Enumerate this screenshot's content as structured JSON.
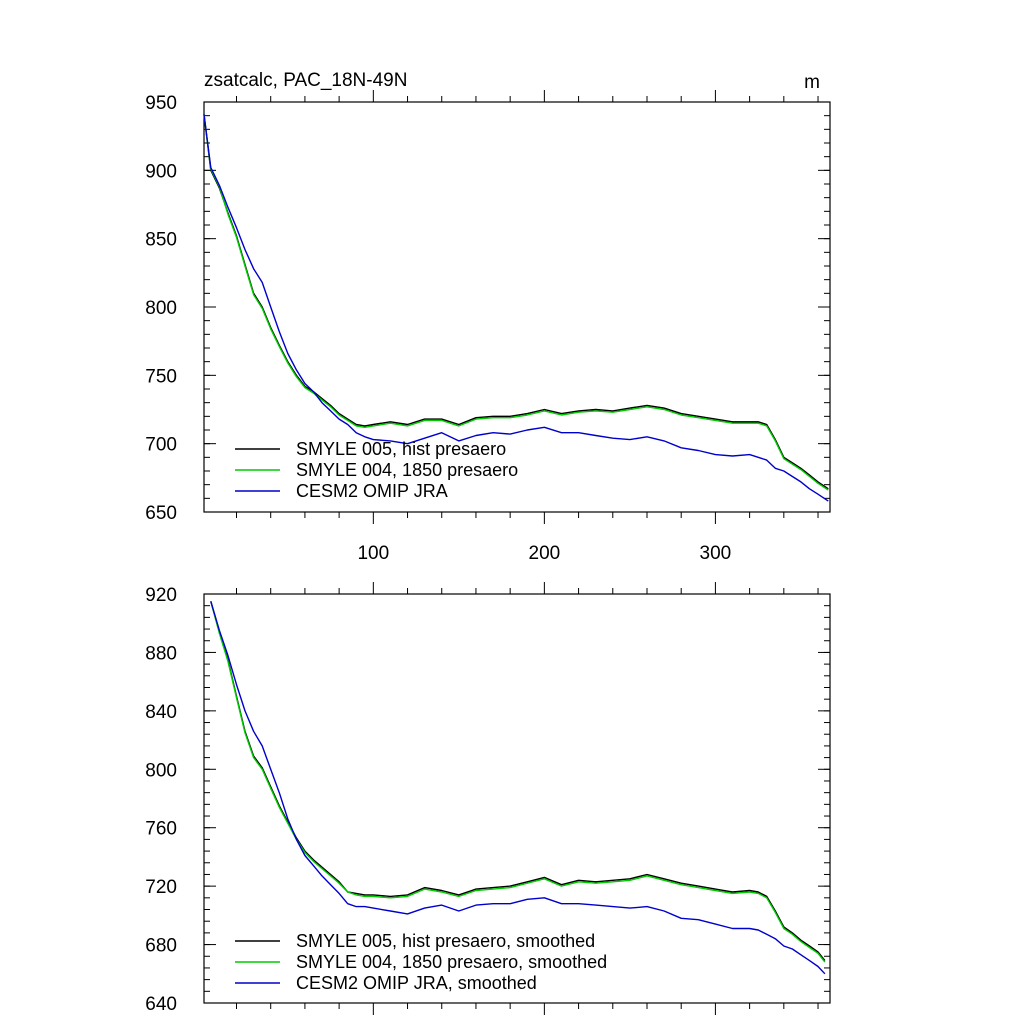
{
  "figure": {
    "title": "zsatcalc, PAC_18N-49N",
    "units": "m"
  },
  "colors": {
    "smyle005": "#000000",
    "smyle004": "#00cc00",
    "omip": "#0000cc",
    "axis": "#000000"
  },
  "chart_data": [
    {
      "type": "line",
      "title": "zsatcalc, PAC_18N-49N",
      "units": "m",
      "xlabel": "",
      "ylabel": "",
      "xlim": [
        1,
        367
      ],
      "ylim": [
        650,
        950
      ],
      "xticks": [
        100,
        200,
        300
      ],
      "xtick_labels": [
        "100",
        "200",
        "300"
      ],
      "yticks": [
        650,
        700,
        750,
        800,
        850,
        900,
        950
      ],
      "ytick_labels": [
        "650",
        "700",
        "750",
        "800",
        "850",
        "900",
        "950"
      ],
      "legend_position": "bottom-left",
      "series": [
        {
          "name": "SMYLE 005, hist presaero",
          "color_key": "smyle005",
          "x": [
            1,
            5,
            10,
            15,
            20,
            25,
            30,
            35,
            40,
            45,
            50,
            55,
            60,
            65,
            70,
            75,
            80,
            85,
            90,
            95,
            100,
            110,
            120,
            130,
            140,
            150,
            160,
            170,
            180,
            190,
            200,
            210,
            220,
            230,
            240,
            250,
            260,
            270,
            280,
            290,
            300,
            310,
            320,
            325,
            330,
            335,
            340,
            345,
            350,
            355,
            360,
            366
          ],
          "values": [
            941,
            900,
            887,
            869,
            852,
            831,
            810,
            800,
            785,
            772,
            760,
            750,
            742,
            738,
            733,
            728,
            722,
            718,
            714,
            713,
            714,
            716,
            714,
            718,
            718,
            714,
            719,
            720,
            720,
            722,
            725,
            722,
            724,
            725,
            724,
            726,
            728,
            726,
            722,
            720,
            718,
            716,
            716,
            716,
            714,
            703,
            690,
            686,
            682,
            677,
            672,
            667
          ]
        },
        {
          "name": "SMYLE 004, 1850 presaero",
          "color_key": "smyle004",
          "x": [
            1,
            5,
            10,
            15,
            20,
            25,
            30,
            35,
            40,
            45,
            50,
            55,
            60,
            65,
            70,
            75,
            80,
            85,
            90,
            95,
            100,
            110,
            120,
            130,
            140,
            150,
            160,
            170,
            180,
            190,
            200,
            210,
            220,
            230,
            240,
            250,
            260,
            270,
            280,
            290,
            300,
            310,
            320,
            325,
            330,
            335,
            340,
            345,
            350,
            355,
            360,
            366
          ],
          "values": [
            941,
            901,
            888,
            868,
            851,
            830,
            809,
            799,
            784,
            771,
            759,
            749,
            741,
            737,
            732,
            727,
            721,
            717,
            713,
            712,
            713,
            715,
            713,
            717,
            717,
            713,
            718,
            719,
            719,
            721,
            724,
            721,
            723,
            724,
            723,
            725,
            727,
            725,
            721,
            719,
            717,
            715,
            715,
            715,
            713,
            702,
            689,
            685,
            681,
            676,
            671,
            666
          ]
        },
        {
          "name": "CESM2 OMIP JRA",
          "color_key": "omip",
          "x": [
            1,
            5,
            10,
            15,
            20,
            25,
            30,
            35,
            40,
            45,
            50,
            55,
            60,
            65,
            70,
            75,
            80,
            85,
            90,
            95,
            100,
            110,
            120,
            130,
            140,
            150,
            160,
            170,
            180,
            190,
            200,
            210,
            220,
            230,
            240,
            250,
            260,
            270,
            280,
            290,
            300,
            310,
            320,
            325,
            330,
            335,
            340,
            345,
            350,
            355,
            360,
            366
          ],
          "values": [
            941,
            902,
            889,
            873,
            858,
            842,
            828,
            818,
            800,
            782,
            766,
            754,
            744,
            738,
            730,
            724,
            718,
            714,
            708,
            705,
            703,
            702,
            700,
            704,
            708,
            702,
            706,
            708,
            707,
            710,
            712,
            708,
            708,
            706,
            704,
            703,
            705,
            702,
            697,
            695,
            692,
            691,
            692,
            690,
            688,
            682,
            680,
            676,
            672,
            667,
            663,
            658
          ]
        }
      ]
    },
    {
      "type": "line",
      "title": "",
      "xlabel": "",
      "ylabel": "",
      "xlim": [
        1,
        367
      ],
      "ylim": [
        640,
        920
      ],
      "xticks": [
        100,
        200,
        300
      ],
      "xtick_labels": [],
      "yticks": [
        640,
        680,
        720,
        760,
        800,
        840,
        880,
        920
      ],
      "ytick_labels": [
        "640",
        "680",
        "720",
        "760",
        "800",
        "840",
        "880",
        "920"
      ],
      "legend_position": "bottom-left",
      "series": [
        {
          "name": "SMYLE 005, hist presaero, smoothed",
          "color_key": "smyle005",
          "x": [
            5,
            10,
            15,
            20,
            25,
            30,
            35,
            40,
            45,
            50,
            55,
            60,
            65,
            70,
            75,
            80,
            85,
            90,
            95,
            100,
            110,
            120,
            130,
            140,
            150,
            160,
            170,
            180,
            190,
            200,
            210,
            220,
            230,
            240,
            250,
            260,
            270,
            280,
            290,
            300,
            310,
            320,
            325,
            330,
            335,
            340,
            345,
            350,
            355,
            360,
            364
          ],
          "values": [
            915,
            894,
            875,
            850,
            826,
            809,
            801,
            788,
            775,
            764,
            753,
            744,
            738,
            733,
            728,
            723,
            716,
            715,
            714,
            714,
            713,
            714,
            719,
            717,
            714,
            718,
            719,
            720,
            723,
            726,
            721,
            724,
            723,
            724,
            725,
            728,
            725,
            722,
            720,
            718,
            716,
            717,
            716,
            713,
            703,
            692,
            688,
            683,
            679,
            675,
            669
          ]
        },
        {
          "name": "SMYLE 004, 1850 presaero, smoothed",
          "color_key": "smyle004",
          "x": [
            5,
            10,
            15,
            20,
            25,
            30,
            35,
            40,
            45,
            50,
            55,
            60,
            65,
            70,
            75,
            80,
            85,
            90,
            95,
            100,
            110,
            120,
            130,
            140,
            150,
            160,
            170,
            180,
            190,
            200,
            210,
            220,
            230,
            240,
            250,
            260,
            270,
            280,
            290,
            300,
            310,
            320,
            325,
            330,
            335,
            340,
            345,
            350,
            355,
            360,
            364
          ],
          "values": [
            915,
            893,
            874,
            849,
            825,
            808,
            800,
            787,
            774,
            763,
            752,
            743,
            737,
            732,
            727,
            722,
            716,
            714,
            713,
            713,
            712,
            713,
            718,
            716,
            713,
            717,
            718,
            719,
            722,
            725,
            720,
            723,
            722,
            723,
            724,
            727,
            724,
            721,
            719,
            717,
            715,
            716,
            715,
            712,
            702,
            691,
            687,
            682,
            678,
            674,
            668
          ]
        },
        {
          "name": "CESM2 OMIP JRA, smoothed",
          "color_key": "omip",
          "x": [
            5,
            10,
            15,
            20,
            25,
            30,
            35,
            40,
            45,
            50,
            55,
            60,
            65,
            70,
            75,
            80,
            85,
            90,
            95,
            100,
            110,
            120,
            130,
            140,
            150,
            160,
            170,
            180,
            190,
            200,
            210,
            220,
            230,
            240,
            250,
            260,
            270,
            280,
            290,
            300,
            310,
            320,
            325,
            330,
            335,
            340,
            345,
            350,
            355,
            360,
            364
          ],
          "values": [
            915,
            895,
            878,
            858,
            840,
            826,
            816,
            800,
            784,
            766,
            752,
            741,
            734,
            727,
            721,
            715,
            708,
            706,
            706,
            705,
            703,
            701,
            705,
            707,
            703,
            707,
            708,
            708,
            711,
            712,
            708,
            708,
            707,
            706,
            705,
            706,
            703,
            698,
            697,
            694,
            691,
            691,
            690,
            687,
            684,
            679,
            677,
            673,
            669,
            665,
            660
          ]
        }
      ]
    }
  ]
}
